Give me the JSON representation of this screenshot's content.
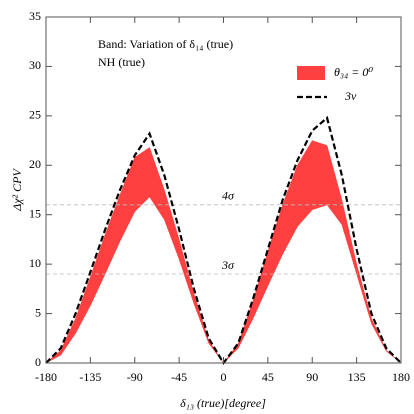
{
  "chart_data": {
    "type": "band-line",
    "annotations": [
      "Band: Variation of δ₁₄ (true)",
      "NH (true)"
    ],
    "x_label": "δ₁₃ (true)[degree]",
    "y_label": "Δχ² CPV",
    "x": [
      -180,
      -165,
      -150,
      -135,
      -120,
      -105,
      -90,
      -75,
      -60,
      -45,
      -30,
      -15,
      0,
      15,
      30,
      45,
      60,
      75,
      90,
      105,
      120,
      135,
      150,
      165,
      180
    ],
    "series": [
      {
        "name": "θ₃₄ = 0⁰",
        "style": "band",
        "color": "#ff4040",
        "upper": [
          0,
          1.3,
          4.5,
          8.7,
          13,
          17,
          20.8,
          21.8,
          17.5,
          12.5,
          7,
          2.3,
          0,
          2,
          6.3,
          11.3,
          16,
          20,
          22.5,
          22,
          16.5,
          10,
          4.5,
          1.3,
          0
        ],
        "lower": [
          0,
          0.8,
          3,
          5.8,
          9,
          12.3,
          15.3,
          16.8,
          14.5,
          10.5,
          6,
          2,
          0,
          1.5,
          4.5,
          7.8,
          11,
          13.8,
          15.5,
          16,
          14,
          9,
          4,
          1.2,
          0
        ]
      },
      {
        "name": "3ν",
        "style": "dashed",
        "color": "#000000",
        "values": [
          0,
          1.5,
          5,
          9.2,
          13.5,
          17.5,
          21,
          23.2,
          19,
          13.5,
          7.5,
          2.5,
          0,
          2,
          6.5,
          11.5,
          16.5,
          20.5,
          23.5,
          24.8,
          19,
          11.5,
          5,
          1.5,
          0
        ]
      }
    ],
    "reference_lines": [
      {
        "value": 16,
        "label": "4σ"
      },
      {
        "value": 9,
        "label": "3σ"
      }
    ],
    "xlim": [
      -180,
      180
    ],
    "ylim": [
      0,
      35
    ],
    "xticks": [
      -180,
      -135,
      -90,
      -45,
      0,
      45,
      90,
      135,
      180
    ],
    "yticks": [
      0,
      5,
      10,
      15,
      20,
      25,
      30,
      35
    ]
  }
}
